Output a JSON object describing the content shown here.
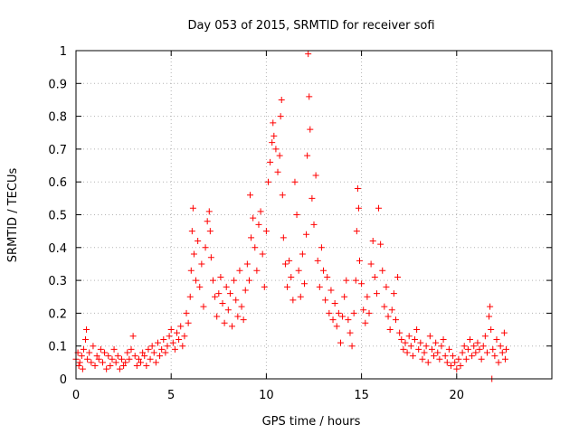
{
  "chart_data": {
    "type": "scatter",
    "title": "Day 053 of 2015, SRMTID for receiver sofi",
    "xlabel": "GPS time / hours",
    "ylabel": "SRMTID / TECUs",
    "xlim": [
      0,
      25
    ],
    "ylim": [
      0,
      1
    ],
    "grid": true,
    "marker": "+",
    "color": "#ff0000",
    "x_ticks": [
      0,
      5,
      10,
      15,
      20
    ],
    "x_tick_labels": [
      "0",
      "5",
      "10",
      "15",
      "20"
    ],
    "y_ticks": [
      0,
      0.1,
      0.2,
      0.3,
      0.4,
      0.5,
      0.6,
      0.7,
      0.8,
      0.9,
      1
    ],
    "y_tick_labels": [
      "0",
      "0.1",
      "0.2",
      "0.3",
      "0.4",
      "0.5",
      "0.6",
      "0.7",
      "0.8",
      "0.9",
      "1"
    ],
    "series": [
      {
        "name": "sofi",
        "points": [
          [
            0.0,
            0.06
          ],
          [
            0.1,
            0.08
          ],
          [
            0.15,
            0.04
          ],
          [
            0.2,
            0.05
          ],
          [
            0.3,
            0.07
          ],
          [
            0.35,
            0.03
          ],
          [
            0.4,
            0.09
          ],
          [
            0.5,
            0.12
          ],
          [
            0.55,
            0.15
          ],
          [
            0.6,
            0.06
          ],
          [
            0.7,
            0.08
          ],
          [
            0.8,
            0.05
          ],
          [
            0.9,
            0.1
          ],
          [
            1.0,
            0.04
          ],
          [
            1.1,
            0.07
          ],
          [
            1.2,
            0.06
          ],
          [
            1.3,
            0.09
          ],
          [
            1.4,
            0.05
          ],
          [
            1.5,
            0.08
          ],
          [
            1.6,
            0.03
          ],
          [
            1.7,
            0.07
          ],
          [
            1.8,
            0.04
          ],
          [
            1.9,
            0.06
          ],
          [
            2.0,
            0.09
          ],
          [
            2.1,
            0.05
          ],
          [
            2.2,
            0.07
          ],
          [
            2.3,
            0.03
          ],
          [
            2.4,
            0.06
          ],
          [
            2.5,
            0.04
          ],
          [
            2.6,
            0.05
          ],
          [
            2.7,
            0.08
          ],
          [
            2.8,
            0.06
          ],
          [
            2.9,
            0.09
          ],
          [
            3.0,
            0.13
          ],
          [
            3.1,
            0.07
          ],
          [
            3.2,
            0.04
          ],
          [
            3.3,
            0.06
          ],
          [
            3.4,
            0.05
          ],
          [
            3.5,
            0.08
          ],
          [
            3.6,
            0.07
          ],
          [
            3.7,
            0.04
          ],
          [
            3.8,
            0.09
          ],
          [
            3.9,
            0.06
          ],
          [
            4.0,
            0.1
          ],
          [
            4.1,
            0.08
          ],
          [
            4.2,
            0.05
          ],
          [
            4.3,
            0.11
          ],
          [
            4.4,
            0.07
          ],
          [
            4.5,
            0.09
          ],
          [
            4.6,
            0.12
          ],
          [
            4.7,
            0.08
          ],
          [
            4.8,
            0.1
          ],
          [
            4.9,
            0.13
          ],
          [
            5.0,
            0.15
          ],
          [
            5.1,
            0.11
          ],
          [
            5.2,
            0.09
          ],
          [
            5.3,
            0.14
          ],
          [
            5.4,
            0.12
          ],
          [
            5.5,
            0.16
          ],
          [
            5.6,
            0.1
          ],
          [
            5.7,
            0.13
          ],
          [
            5.8,
            0.2
          ],
          [
            5.9,
            0.17
          ],
          [
            6.0,
            0.25
          ],
          [
            6.05,
            0.33
          ],
          [
            6.1,
            0.45
          ],
          [
            6.15,
            0.52
          ],
          [
            6.2,
            0.38
          ],
          [
            6.3,
            0.3
          ],
          [
            6.4,
            0.42
          ],
          [
            6.5,
            0.28
          ],
          [
            6.6,
            0.35
          ],
          [
            6.7,
            0.22
          ],
          [
            6.8,
            0.4
          ],
          [
            6.9,
            0.48
          ],
          [
            7.0,
            0.51
          ],
          [
            7.05,
            0.45
          ],
          [
            7.1,
            0.37
          ],
          [
            7.2,
            0.3
          ],
          [
            7.3,
            0.25
          ],
          [
            7.4,
            0.19
          ],
          [
            7.5,
            0.26
          ],
          [
            7.6,
            0.31
          ],
          [
            7.7,
            0.23
          ],
          [
            7.8,
            0.17
          ],
          [
            7.9,
            0.28
          ],
          [
            8.0,
            0.21
          ],
          [
            8.1,
            0.26
          ],
          [
            8.2,
            0.16
          ],
          [
            8.3,
            0.3
          ],
          [
            8.4,
            0.24
          ],
          [
            8.5,
            0.19
          ],
          [
            8.6,
            0.33
          ],
          [
            8.7,
            0.22
          ],
          [
            8.8,
            0.18
          ],
          [
            8.9,
            0.27
          ],
          [
            9.0,
            0.35
          ],
          [
            9.1,
            0.3
          ],
          [
            9.15,
            0.56
          ],
          [
            9.2,
            0.43
          ],
          [
            9.3,
            0.49
          ],
          [
            9.4,
            0.4
          ],
          [
            9.5,
            0.33
          ],
          [
            9.6,
            0.47
          ],
          [
            9.7,
            0.51
          ],
          [
            9.8,
            0.38
          ],
          [
            9.9,
            0.28
          ],
          [
            10.0,
            0.45
          ],
          [
            10.1,
            0.6
          ],
          [
            10.2,
            0.66
          ],
          [
            10.3,
            0.72
          ],
          [
            10.35,
            0.78
          ],
          [
            10.4,
            0.74
          ],
          [
            10.5,
            0.7
          ],
          [
            10.6,
            0.63
          ],
          [
            10.7,
            0.68
          ],
          [
            10.75,
            0.8
          ],
          [
            10.8,
            0.85
          ],
          [
            10.85,
            0.56
          ],
          [
            10.9,
            0.43
          ],
          [
            11.0,
            0.35
          ],
          [
            11.1,
            0.28
          ],
          [
            11.2,
            0.36
          ],
          [
            11.3,
            0.31
          ],
          [
            11.4,
            0.24
          ],
          [
            11.5,
            0.6
          ],
          [
            11.6,
            0.5
          ],
          [
            11.7,
            0.33
          ],
          [
            11.8,
            0.25
          ],
          [
            11.9,
            0.38
          ],
          [
            12.0,
            0.29
          ],
          [
            12.1,
            0.44
          ],
          [
            12.15,
            0.68
          ],
          [
            12.2,
            0.99
          ],
          [
            12.25,
            0.86
          ],
          [
            12.3,
            0.76
          ],
          [
            12.4,
            0.55
          ],
          [
            12.5,
            0.47
          ],
          [
            12.6,
            0.62
          ],
          [
            12.7,
            0.36
          ],
          [
            12.8,
            0.28
          ],
          [
            12.9,
            0.4
          ],
          [
            13.0,
            0.33
          ],
          [
            13.1,
            0.24
          ],
          [
            13.2,
            0.31
          ],
          [
            13.3,
            0.2
          ],
          [
            13.4,
            0.27
          ],
          [
            13.5,
            0.18
          ],
          [
            13.6,
            0.23
          ],
          [
            13.7,
            0.16
          ],
          [
            13.8,
            0.2
          ],
          [
            13.9,
            0.11
          ],
          [
            14.0,
            0.19
          ],
          [
            14.1,
            0.25
          ],
          [
            14.2,
            0.3
          ],
          [
            14.3,
            0.18
          ],
          [
            14.4,
            0.14
          ],
          [
            14.5,
            0.1
          ],
          [
            14.6,
            0.2
          ],
          [
            14.7,
            0.3
          ],
          [
            14.75,
            0.45
          ],
          [
            14.8,
            0.58
          ],
          [
            14.85,
            0.52
          ],
          [
            14.9,
            0.36
          ],
          [
            15.0,
            0.29
          ],
          [
            15.1,
            0.21
          ],
          [
            15.2,
            0.17
          ],
          [
            15.3,
            0.25
          ],
          [
            15.4,
            0.2
          ],
          [
            15.5,
            0.35
          ],
          [
            15.6,
            0.42
          ],
          [
            15.7,
            0.31
          ],
          [
            15.8,
            0.26
          ],
          [
            15.9,
            0.52
          ],
          [
            16.0,
            0.41
          ],
          [
            16.1,
            0.33
          ],
          [
            16.2,
            0.22
          ],
          [
            16.3,
            0.28
          ],
          [
            16.4,
            0.19
          ],
          [
            16.5,
            0.15
          ],
          [
            16.6,
            0.21
          ],
          [
            16.7,
            0.26
          ],
          [
            16.8,
            0.18
          ],
          [
            16.9,
            0.31
          ],
          [
            17.0,
            0.14
          ],
          [
            17.1,
            0.12
          ],
          [
            17.2,
            0.09
          ],
          [
            17.3,
            0.11
          ],
          [
            17.4,
            0.08
          ],
          [
            17.5,
            0.13
          ],
          [
            17.6,
            0.1
          ],
          [
            17.7,
            0.07
          ],
          [
            17.8,
            0.12
          ],
          [
            17.9,
            0.15
          ],
          [
            18.0,
            0.09
          ],
          [
            18.1,
            0.11
          ],
          [
            18.2,
            0.06
          ],
          [
            18.3,
            0.08
          ],
          [
            18.4,
            0.1
          ],
          [
            18.5,
            0.05
          ],
          [
            18.6,
            0.13
          ],
          [
            18.7,
            0.09
          ],
          [
            18.8,
            0.07
          ],
          [
            18.9,
            0.11
          ],
          [
            19.0,
            0.08
          ],
          [
            19.1,
            0.06
          ],
          [
            19.2,
            0.1
          ],
          [
            19.3,
            0.12
          ],
          [
            19.4,
            0.07
          ],
          [
            19.5,
            0.05
          ],
          [
            19.6,
            0.09
          ],
          [
            19.7,
            0.04
          ],
          [
            19.8,
            0.07
          ],
          [
            19.9,
            0.05
          ],
          [
            20.0,
            0.03
          ],
          [
            20.1,
            0.06
          ],
          [
            20.2,
            0.04
          ],
          [
            20.3,
            0.08
          ],
          [
            20.4,
            0.1
          ],
          [
            20.5,
            0.06
          ],
          [
            20.6,
            0.09
          ],
          [
            20.7,
            0.12
          ],
          [
            20.8,
            0.07
          ],
          [
            20.9,
            0.1
          ],
          [
            21.0,
            0.08
          ],
          [
            21.1,
            0.11
          ],
          [
            21.2,
            0.09
          ],
          [
            21.3,
            0.06
          ],
          [
            21.4,
            0.1
          ],
          [
            21.5,
            0.13
          ],
          [
            21.6,
            0.08
          ],
          [
            21.7,
            0.19
          ],
          [
            21.75,
            0.22
          ],
          [
            21.8,
            0.15
          ],
          [
            21.85,
            0.0
          ],
          [
            21.9,
            0.09
          ],
          [
            22.0,
            0.07
          ],
          [
            22.1,
            0.12
          ],
          [
            22.2,
            0.05
          ],
          [
            22.3,
            0.1
          ],
          [
            22.4,
            0.08
          ],
          [
            22.5,
            0.14
          ],
          [
            22.55,
            0.06
          ],
          [
            22.6,
            0.09
          ]
        ]
      }
    ]
  }
}
